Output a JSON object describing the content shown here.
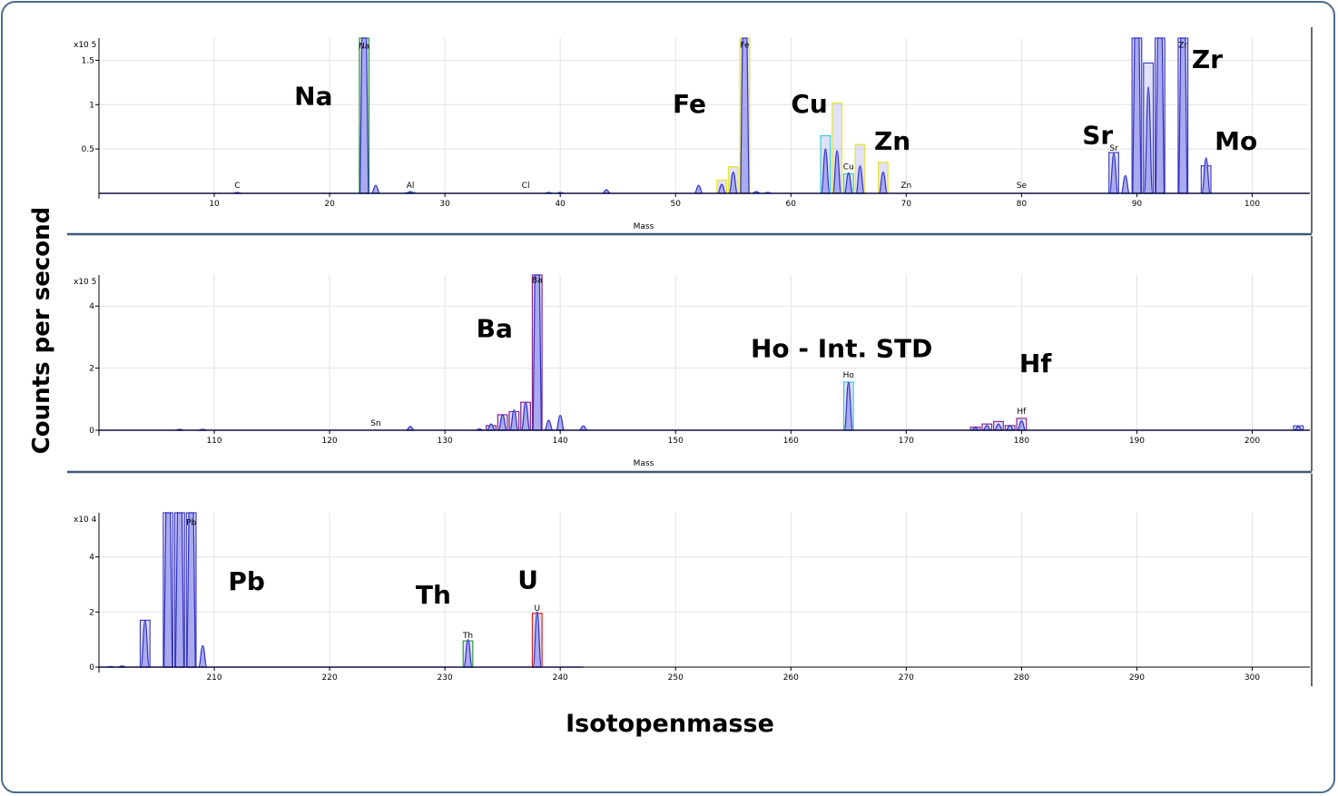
{
  "y_title": "Counts per second",
  "x_title": "Isotopenmasse",
  "chart_data": [
    {
      "type": "bar",
      "panel": "top",
      "xlabel": "Mass",
      "xlim": [
        0,
        105
      ],
      "x_ticks": [
        10,
        20,
        30,
        40,
        50,
        60,
        70,
        80,
        90,
        100
      ],
      "y_scale_label": "x10 5",
      "ylim": [
        0,
        1.75
      ],
      "y_ticks": [
        {
          "v": 0.5,
          "label": "0.5"
        },
        {
          "v": 1,
          "label": "1"
        },
        {
          "v": 1.5,
          "label": "1.5"
        }
      ],
      "grid": true,
      "peaks": [
        {
          "mass": 12,
          "value": 0.01
        },
        {
          "mass": 23,
          "value": 1.75
        },
        {
          "mass": 24,
          "value": 0.09
        },
        {
          "mass": 27,
          "value": 0.02
        },
        {
          "mass": 39,
          "value": 0.01
        },
        {
          "mass": 40,
          "value": 0.01
        },
        {
          "mass": 44,
          "value": 0.04
        },
        {
          "mass": 52,
          "value": 0.09
        },
        {
          "mass": 54,
          "value": 0.1
        },
        {
          "mass": 55,
          "value": 0.24
        },
        {
          "mass": 56,
          "value": 1.75
        },
        {
          "mass": 57,
          "value": 0.02
        },
        {
          "mass": 58,
          "value": 0.01
        },
        {
          "mass": 63,
          "value": 0.5
        },
        {
          "mass": 64,
          "value": 0.48
        },
        {
          "mass": 65,
          "value": 0.23
        },
        {
          "mass": 66,
          "value": 0.31
        },
        {
          "mass": 68,
          "value": 0.24
        },
        {
          "mass": 88,
          "value": 0.45
        },
        {
          "mass": 89,
          "value": 0.2
        },
        {
          "mass": 90,
          "value": 1.75
        },
        {
          "mass": 91,
          "value": 1.2
        },
        {
          "mass": 92,
          "value": 1.75
        },
        {
          "mass": 94,
          "value": 1.75
        },
        {
          "mass": 96,
          "value": 0.4
        }
      ],
      "boxes": [
        {
          "mass": 23,
          "value": 1.75,
          "color": "#2e9e2e"
        },
        {
          "mass": 27,
          "value": 0.01,
          "color": "#33cccc"
        },
        {
          "mass": 54,
          "value": 0.15,
          "color": "#e6e62e"
        },
        {
          "mass": 55,
          "value": 0.3,
          "color": "#e6e62e"
        },
        {
          "mass": 56,
          "value": 1.75,
          "color": "#e6e62e"
        },
        {
          "mass": 63,
          "value": 0.65,
          "color": "#33cccc"
        },
        {
          "mass": 64,
          "value": 1.02,
          "color": "#e6e62e"
        },
        {
          "mass": 65,
          "value": 0.22,
          "color": "#33cccc"
        },
        {
          "mass": 66,
          "value": 0.55,
          "color": "#e6e62e"
        },
        {
          "mass": 68,
          "value": 0.35,
          "color": "#e6e62e"
        },
        {
          "mass": 88,
          "value": 0.46,
          "color": "#4040c0"
        },
        {
          "mass": 90,
          "value": 1.75,
          "color": "#4040c0"
        },
        {
          "mass": 91,
          "value": 1.47,
          "color": "#4040c0"
        },
        {
          "mass": 92,
          "value": 1.75,
          "color": "#4040c0"
        },
        {
          "mass": 94,
          "value": 1.75,
          "color": "#4040c0"
        },
        {
          "mass": 96,
          "value": 0.31,
          "color": "#4040c0"
        }
      ],
      "small_labels": [
        {
          "text": "C",
          "mass": 12,
          "value": 0.06
        },
        {
          "text": "Na",
          "mass": 23,
          "value": 1.63
        },
        {
          "text": "Al",
          "mass": 27,
          "value": 0.06
        },
        {
          "text": "Cl",
          "mass": 37,
          "value": 0.06
        },
        {
          "text": "Fe",
          "mass": 56,
          "value": 1.64
        },
        {
          "text": "Cu",
          "mass": 65,
          "value": 0.27
        },
        {
          "text": "Zn",
          "mass": 70,
          "value": 0.06
        },
        {
          "text": "Se",
          "mass": 80,
          "value": 0.06
        },
        {
          "text": "Sr",
          "mass": 88,
          "value": 0.48
        },
        {
          "text": "Zr",
          "mass": 94,
          "value": 1.64
        }
      ],
      "annotations": [
        {
          "text": "Na",
          "mass": 18.6,
          "value": 1.0
        },
        {
          "text": "Fe",
          "mass": 51.2,
          "value": 0.91
        },
        {
          "text": "Cu",
          "mass": 61.6,
          "value": 0.91
        },
        {
          "text": "Zn",
          "mass": 68.8,
          "value": 0.49
        },
        {
          "text": "Sr",
          "mass": 86.6,
          "value": 0.56
        },
        {
          "text": "Zr",
          "mass": 96.1,
          "value": 1.41
        },
        {
          "text": "Mo",
          "mass": 98.6,
          "value": 0.49
        }
      ]
    },
    {
      "type": "bar",
      "panel": "middle",
      "xlabel": "Mass",
      "xlim": [
        100,
        205
      ],
      "x_ticks": [
        110,
        120,
        130,
        140,
        150,
        160,
        170,
        180,
        190,
        200
      ],
      "y_scale_label": "x10 5",
      "ylim": [
        0,
        5
      ],
      "y_ticks": [
        {
          "v": 0,
          "label": "0"
        },
        {
          "v": 2,
          "label": "2"
        },
        {
          "v": 4,
          "label": "4"
        }
      ],
      "grid": true,
      "peaks": [
        {
          "mass": 107,
          "value": 0.03
        },
        {
          "mass": 109,
          "value": 0.03
        },
        {
          "mass": 127,
          "value": 0.12
        },
        {
          "mass": 133,
          "value": 0.04
        },
        {
          "mass": 134,
          "value": 0.2
        },
        {
          "mass": 135,
          "value": 0.5
        },
        {
          "mass": 136,
          "value": 0.65
        },
        {
          "mass": 137,
          "value": 0.9
        },
        {
          "mass": 138,
          "value": 5.0
        },
        {
          "mass": 139,
          "value": 0.32
        },
        {
          "mass": 140,
          "value": 0.48
        },
        {
          "mass": 142,
          "value": 0.14
        },
        {
          "mass": 165,
          "value": 1.55
        },
        {
          "mass": 176,
          "value": 0.08
        },
        {
          "mass": 177,
          "value": 0.15
        },
        {
          "mass": 178,
          "value": 0.2
        },
        {
          "mass": 179,
          "value": 0.15
        },
        {
          "mass": 180,
          "value": 0.3
        },
        {
          "mass": 204,
          "value": 0.12
        }
      ],
      "boxes": [
        {
          "mass": 134,
          "value": 0.15,
          "color": "#8a2a8a"
        },
        {
          "mass": 135,
          "value": 0.5,
          "color": "#8a2a8a"
        },
        {
          "mass": 136,
          "value": 0.6,
          "color": "#8a2a8a"
        },
        {
          "mass": 137,
          "value": 0.9,
          "color": "#8a2a8a"
        },
        {
          "mass": 138,
          "value": 5.0,
          "color": "#8a2a8a"
        },
        {
          "mass": 165,
          "value": 1.55,
          "color": "#33cccc"
        },
        {
          "mass": 176,
          "value": 0.1,
          "color": "#8a2a8a"
        },
        {
          "mass": 177,
          "value": 0.2,
          "color": "#8a2a8a"
        },
        {
          "mass": 178,
          "value": 0.28,
          "color": "#8a2a8a"
        },
        {
          "mass": 179,
          "value": 0.15,
          "color": "#8a2a8a"
        },
        {
          "mass": 180,
          "value": 0.38,
          "color": "#8a2a8a"
        },
        {
          "mass": 204,
          "value": 0.14,
          "color": "#4040c0"
        }
      ],
      "small_labels": [
        {
          "text": "Sn",
          "mass": 124,
          "value": 0.15
        },
        {
          "text": "Ba",
          "mass": 138,
          "value": 4.75
        },
        {
          "text": "Ho",
          "mass": 165,
          "value": 1.7
        },
        {
          "text": "Hf",
          "mass": 180,
          "value": 0.52
        }
      ],
      "annotations": [
        {
          "text": "Ba",
          "mass": 134.3,
          "value": 3.0
        },
        {
          "text": "Ho - Int. STD",
          "mass": 164.4,
          "value": 2.35
        },
        {
          "text": "Hf",
          "mass": 181.2,
          "value": 1.87
        }
      ]
    },
    {
      "type": "bar",
      "panel": "bottom",
      "xlabel": "",
      "xlim": [
        200,
        305
      ],
      "x_ticks": [
        210,
        220,
        230,
        240,
        250,
        260,
        270,
        280,
        290,
        300
      ],
      "y_scale_label": "x10 4",
      "ylim": [
        0,
        5.6
      ],
      "y_ticks": [
        {
          "v": 0,
          "label": "0"
        },
        {
          "v": 2,
          "label": "2"
        },
        {
          "v": 4,
          "label": "4"
        }
      ],
      "grid": true,
      "peaks": [
        {
          "mass": 201,
          "value": 0.02
        },
        {
          "mass": 202,
          "value": 0.04
        },
        {
          "mass": 204,
          "value": 1.7
        },
        {
          "mass": 206,
          "value": 5.6
        },
        {
          "mass": 207,
          "value": 5.6
        },
        {
          "mass": 208,
          "value": 5.6
        },
        {
          "mass": 209,
          "value": 0.78
        },
        {
          "mass": 232,
          "value": 1.0
        },
        {
          "mass": 238,
          "value": 2.0
        }
      ],
      "boxes": [
        {
          "mass": 204,
          "value": 1.7,
          "color": "#4040c0"
        },
        {
          "mass": 206,
          "value": 5.6,
          "color": "#4040c0"
        },
        {
          "mass": 207,
          "value": 5.6,
          "color": "#4040c0"
        },
        {
          "mass": 208,
          "value": 5.6,
          "color": "#4040c0"
        },
        {
          "mass": 232,
          "value": 0.95,
          "color": "#2e9e2e"
        },
        {
          "mass": 238,
          "value": 1.95,
          "color": "#e02020"
        }
      ],
      "small_labels": [
        {
          "text": "Pb",
          "mass": 208,
          "value": 5.15
        },
        {
          "text": "Th",
          "mass": 232,
          "value": 1.05
        },
        {
          "text": "U",
          "mass": 238,
          "value": 2.05
        }
      ],
      "annotations": [
        {
          "text": "Pb",
          "mass": 212.8,
          "value": 2.8
        },
        {
          "text": "Th",
          "mass": 229,
          "value": 2.3
        },
        {
          "text": "U",
          "mass": 237.2,
          "value": 2.85
        }
      ]
    }
  ]
}
